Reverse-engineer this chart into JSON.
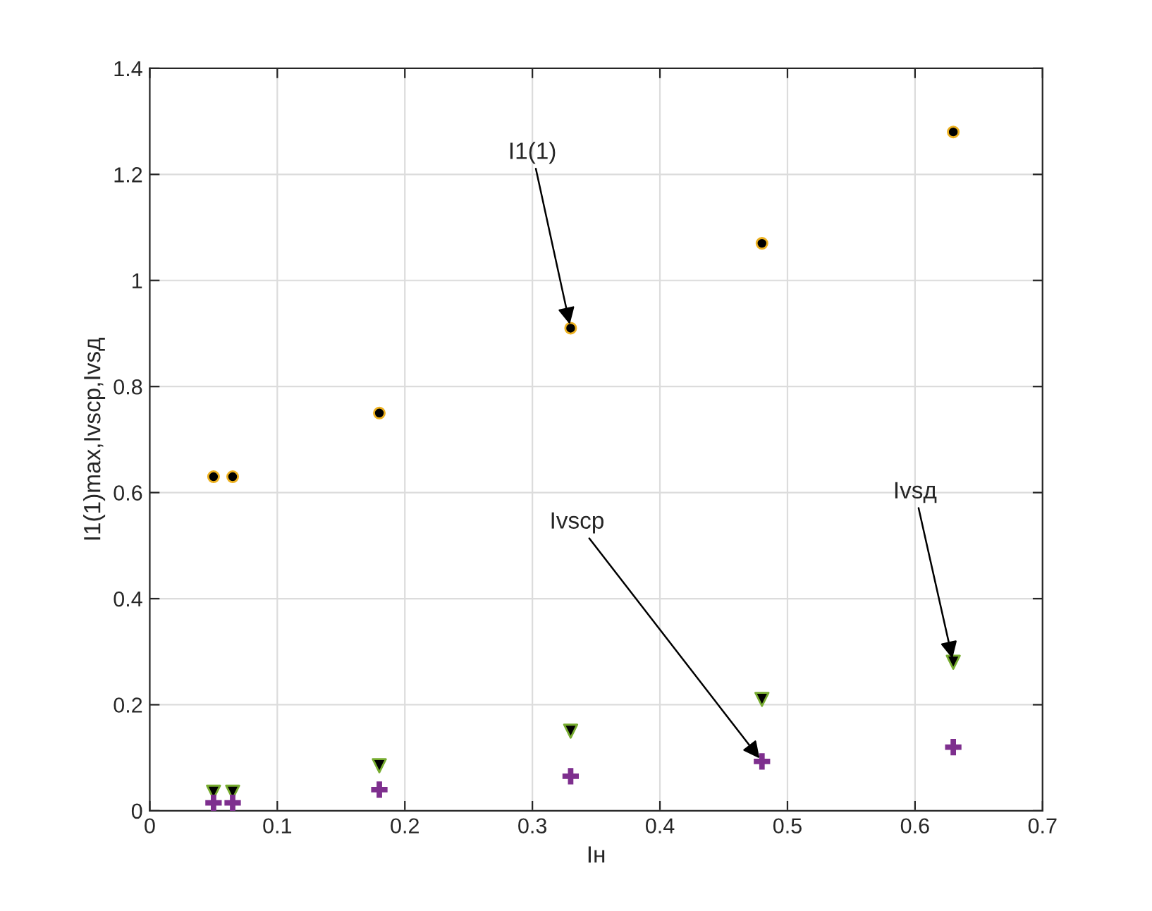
{
  "chart_data": {
    "type": "scatter",
    "xlabel": "Iн",
    "ylabel": "I1(1)max,Ivscp,Ivsд",
    "x": [
      0.05,
      0.065,
      0.18,
      0.33,
      0.48,
      0.63
    ],
    "series": [
      {
        "color": "#000000",
        "marker": "circle",
        "values": [
          0.63,
          0.63,
          0.75,
          0.91,
          1.07,
          1.28
        ]
      },
      {
        "color": "#000000",
        "marker": "triangle",
        "values": [
          0.035,
          0.035,
          0.085,
          0.15,
          0.21,
          0.28
        ]
      },
      {
        "color": "#7e2f8e",
        "marker": "cross",
        "values": [
          0.015,
          0.015,
          0.04,
          0.065,
          0.093,
          0.12
        ]
      }
    ],
    "annotations": [
      {
        "text": "I1(1)",
        "x": 0.33,
        "y": 0.91
      },
      {
        "text": "Ivscp",
        "x": 0.48,
        "y": 0.093
      },
      {
        "text": "Ivsд",
        "x": 0.63,
        "y": 0.28
      }
    ],
    "xlim": [
      0,
      0.7
    ],
    "xticks": [
      0,
      0.1,
      0.2,
      0.3,
      0.4,
      0.5,
      0.6,
      0.7
    ],
    "ylim": [
      0,
      1.4
    ],
    "yticks": [
      0,
      0.2,
      0.4,
      0.6,
      0.8,
      1,
      1.2,
      1.4
    ],
    "grid": true
  }
}
